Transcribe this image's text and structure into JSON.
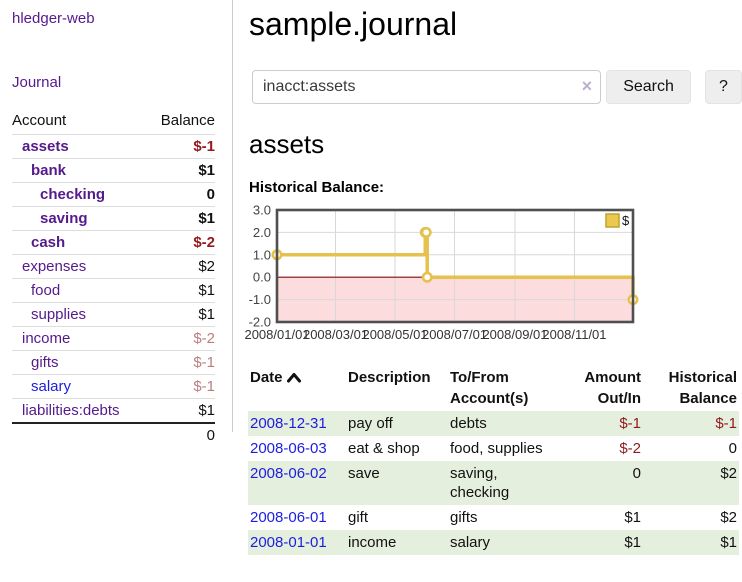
{
  "colors": {
    "link_purple": "#551A8B",
    "link_blue": "#1d1de0",
    "negative_strong": "#96191c",
    "negative_soft": "#b97e7e",
    "row_green": "#e5efdd",
    "chart_line_gold": "#e6c14d",
    "chart_negative_zone": "#fcdcdc",
    "chart_zero_line": "#7d0d0d"
  },
  "sidebar": {
    "app_title": "hledger-web",
    "journal_link": "Journal",
    "table": {
      "headers": {
        "account": "Account",
        "balance": "Balance"
      },
      "rows": [
        {
          "account": "assets",
          "balance": "$-1",
          "indent": 1,
          "bold": true,
          "neg": "strong"
        },
        {
          "account": "bank",
          "balance": "$1",
          "indent": 2,
          "bold": true,
          "neg": "none"
        },
        {
          "account": "checking",
          "balance": "0",
          "indent": 3,
          "bold": true,
          "neg": "none"
        },
        {
          "account": "saving",
          "balance": "$1",
          "indent": 3,
          "bold": true,
          "neg": "none"
        },
        {
          "account": "cash",
          "balance": "$-2",
          "indent": 2,
          "bold": true,
          "neg": "strong"
        },
        {
          "account": "expenses",
          "balance": "$2",
          "indent": 1,
          "bold": false,
          "neg": "none"
        },
        {
          "account": "food",
          "balance": "$1",
          "indent": 2,
          "bold": false,
          "neg": "none"
        },
        {
          "account": "supplies",
          "balance": "$1",
          "indent": 2,
          "bold": false,
          "neg": "none"
        },
        {
          "account": "income",
          "balance": "$-2",
          "indent": 1,
          "bold": false,
          "neg": "soft"
        },
        {
          "account": "gifts",
          "balance": "$-1",
          "indent": 2,
          "bold": false,
          "neg": "soft"
        },
        {
          "account": "salary",
          "balance": "$-1",
          "indent": 2,
          "bold": false,
          "neg": "soft",
          "link_color": "blue"
        },
        {
          "account": "liabilities:debts",
          "balance": "$1",
          "indent": 1,
          "bold": false,
          "neg": "none"
        }
      ],
      "total": "0"
    }
  },
  "main": {
    "title": "sample.journal",
    "search": {
      "value": "inacct:assets",
      "clear_icon": "×",
      "button_label": "Search",
      "help_label": "?"
    },
    "account_heading": "assets",
    "chart_label": "Historical Balance:"
  },
  "chart_data": {
    "type": "line",
    "step": true,
    "title": "Historical Balance",
    "series": [
      {
        "name": "$",
        "color": "#e6c14d",
        "points": [
          [
            "2008-01-01",
            1
          ],
          [
            "2008-06-01",
            2
          ],
          [
            "2008-06-02",
            2
          ],
          [
            "2008-06-03",
            0
          ],
          [
            "2008-12-31",
            -1
          ]
        ]
      }
    ],
    "ylim": [
      -2,
      3
    ],
    "yticks": [
      "3.0",
      "2.0",
      "1.0",
      "0.0",
      "-1.0",
      "-2.0"
    ],
    "ytick_values": [
      3,
      2,
      1,
      0,
      -1,
      -2
    ],
    "xticks": [
      "2008/01/01",
      "2008/03/01",
      "2008/05/01",
      "2008/07/01",
      "2008/09/01",
      "2008/11/01"
    ],
    "xrange": [
      "2008-01-01",
      "2008-12-31"
    ],
    "grid": true,
    "negative_zone_shaded": true,
    "legend": {
      "label": "$",
      "position": "top-right"
    }
  },
  "register": {
    "headers": {
      "date": "Date",
      "description": "Description",
      "accounts": "To/From\nAccount(s)",
      "amount": "Amount\nOut/In",
      "balance": "Historical\nBalance"
    },
    "sort": {
      "column": "date",
      "direction": "ascending"
    },
    "rows": [
      {
        "date": "2008-12-31",
        "description": "pay off",
        "accounts": "debts",
        "amount": "$-1",
        "amount_neg": true,
        "balance": "$-1",
        "balance_neg": true,
        "shaded": true
      },
      {
        "date": "2008-06-03",
        "description": "eat & shop",
        "accounts": "food, supplies",
        "amount": "$-2",
        "amount_neg": true,
        "balance": "0",
        "balance_neg": false,
        "shaded": false
      },
      {
        "date": "2008-06-02",
        "description": "save",
        "accounts": "saving,\nchecking",
        "amount": "0",
        "amount_neg": false,
        "balance": "$2",
        "balance_neg": false,
        "shaded": true
      },
      {
        "date": "2008-06-01",
        "description": "gift",
        "accounts": "gifts",
        "amount": "$1",
        "amount_neg": false,
        "balance": "$2",
        "balance_neg": false,
        "shaded": false
      },
      {
        "date": "2008-01-01",
        "description": "income",
        "accounts": "salary",
        "amount": "$1",
        "amount_neg": false,
        "balance": "$1",
        "balance_neg": false,
        "shaded": true
      }
    ]
  }
}
